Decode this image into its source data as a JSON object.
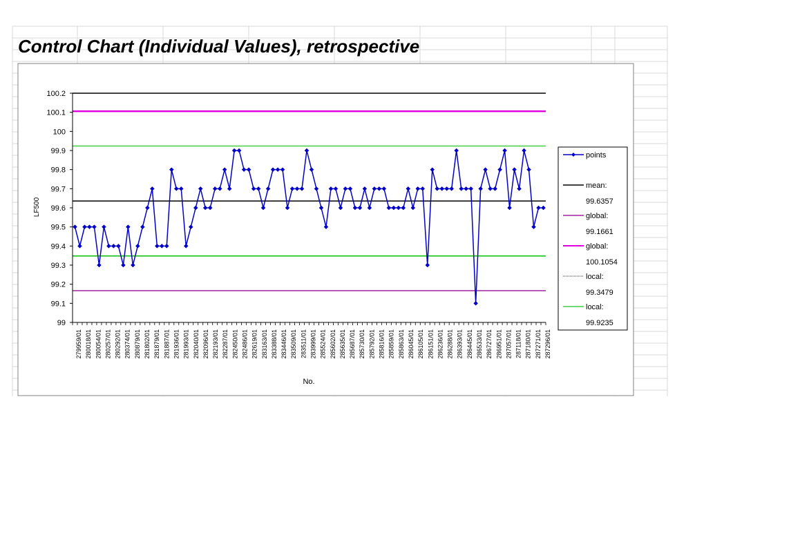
{
  "sheet": {
    "gridline_color": "#d9d9d9"
  },
  "chart_data": {
    "type": "line",
    "title": "Control Chart (Individual Values), retrospective",
    "xlabel": "No.",
    "ylabel": "LF500",
    "ylim": [
      99,
      100.2
    ],
    "yticks": [
      "99",
      "99.1",
      "99.2",
      "99.3",
      "99.4",
      "99.5",
      "99.6",
      "99.7",
      "99.8",
      "99.9",
      "100",
      "100.1",
      "100.2"
    ],
    "x_tick_labels": [
      "279959/01",
      "280018/01",
      "280054/01",
      "280257/01",
      "280292/01",
      "280374/01",
      "280879/01",
      "281802/01",
      "281879/01",
      "281887/01",
      "281936/01",
      "281993/01",
      "282040/01",
      "282096/01",
      "282193/01",
      "282287/01",
      "282450/01",
      "282486/01",
      "282619/01",
      "283163/01",
      "283388/01",
      "283446/01",
      "283509/01",
      "283511/01",
      "283999/01",
      "285524/01",
      "285602/01",
      "285635/01",
      "285687/01",
      "285730/01",
      "285792/01",
      "285816/01",
      "285859/01",
      "285863/01",
      "286045/01",
      "286105/01",
      "286151/01",
      "286236/01",
      "286288/01",
      "286393/01",
      "286445/01",
      "286533/01",
      "286727/01",
      "286951/01",
      "287057/01",
      "287118/01",
      "287180/01",
      "287271/01",
      "287296/01"
    ],
    "series": [
      {
        "name": "points",
        "color": "#0000c8",
        "values": [
          99.5,
          99.4,
          99.5,
          99.5,
          99.5,
          99.3,
          99.5,
          99.4,
          99.4,
          99.4,
          99.3,
          99.5,
          99.3,
          99.4,
          99.5,
          99.6,
          99.7,
          99.4,
          99.4,
          99.4,
          99.8,
          99.7,
          99.7,
          99.4,
          99.5,
          99.6,
          99.7,
          99.6,
          99.6,
          99.7,
          99.7,
          99.8,
          99.7,
          99.9,
          99.9,
          99.8,
          99.8,
          99.7,
          99.7,
          99.6,
          99.7,
          99.8,
          99.8,
          99.8,
          99.6,
          99.7,
          99.7,
          99.7,
          99.9,
          99.8,
          99.7,
          99.6,
          99.5,
          99.7,
          99.7,
          99.6,
          99.7,
          99.7,
          99.6,
          99.6,
          99.7,
          99.6,
          99.7,
          99.7,
          99.7,
          99.6,
          99.6,
          99.6,
          99.6,
          99.7,
          99.6,
          99.7,
          99.7,
          99.3,
          99.8,
          99.7,
          99.7,
          99.7,
          99.7,
          99.9,
          99.7,
          99.7,
          99.7,
          99.1,
          99.7,
          99.8,
          99.7,
          99.7,
          99.8,
          99.9,
          99.6,
          99.8,
          99.7,
          99.9,
          99.8,
          99.5,
          99.6,
          99.6
        ]
      }
    ],
    "reference_lines": [
      {
        "label": "mean:",
        "value": 99.6357,
        "value_text": "99.6357",
        "color": "#000000",
        "width": 1.5
      },
      {
        "label": "global:",
        "value": 99.1661,
        "value_text": "99.1661",
        "color": "#a020a0",
        "width": 1.5
      },
      {
        "label": "global:",
        "value": 100.1054,
        "value_text": "100.1054",
        "color": "#e000e0",
        "width": 2.5
      },
      {
        "label": "local:",
        "value": 99.3479,
        "value_text": "99.3479",
        "color": "#00c000",
        "width": 1.5
      },
      {
        "label": "local:",
        "value": 99.9235,
        "value_text": "99.9235",
        "color": "#40d040",
        "width": 1.5
      }
    ],
    "grid": false,
    "legend": {
      "position": "right"
    }
  }
}
